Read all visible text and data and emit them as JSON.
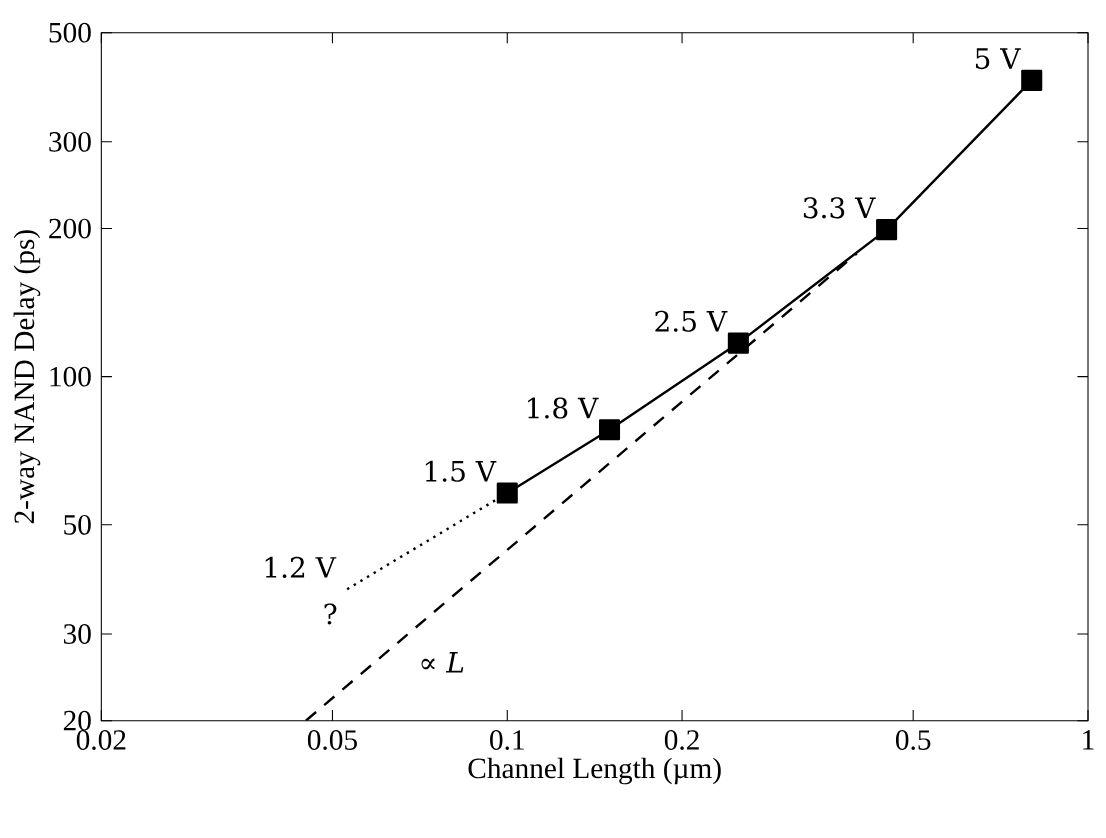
{
  "chart_data": {
    "type": "line",
    "xlabel": "Channel Length (µm)",
    "ylabel": "2-way NAND Delay (ps)",
    "log": "xy",
    "grid": false,
    "xlim": [
      0.02,
      1
    ],
    "ylim": [
      20,
      500
    ],
    "xticks": [
      0.02,
      0.05,
      0.1,
      0.2,
      0.5,
      1
    ],
    "yticks": [
      20,
      30,
      50,
      100,
      200,
      300,
      500
    ],
    "series": [
      {
        "color": "#000000",
        "x": [
          0.1,
          0.15,
          0.25,
          0.45,
          0.8
        ],
        "values": [
          58,
          78,
          117,
          199,
          400
        ],
        "marker": "square",
        "line_style": "solid"
      },
      {
        "color": "#000000",
        "x": [
          0.053,
          0.1
        ],
        "values": [
          37,
          58
        ],
        "marker": "none",
        "line_style": "dotted"
      },
      {
        "color": "#000000",
        "x": [
          0.045,
          0.4
        ],
        "values": [
          20,
          178
        ],
        "marker": "none",
        "line_style": "dashed"
      }
    ],
    "annotations": [
      {
        "text": "1.5 V",
        "x": 0.1,
        "y": 58
      },
      {
        "text": "1.8 V",
        "x": 0.15,
        "y": 78
      },
      {
        "text": "2.5 V",
        "x": 0.25,
        "y": 117
      },
      {
        "text": "3.3 V",
        "x": 0.45,
        "y": 199
      },
      {
        "text": "5 V",
        "x": 0.8,
        "y": 400
      },
      {
        "text": "1.2 V",
        "x": 0.053,
        "y": 37
      },
      "?",
      "∝ *L*"
    ]
  }
}
